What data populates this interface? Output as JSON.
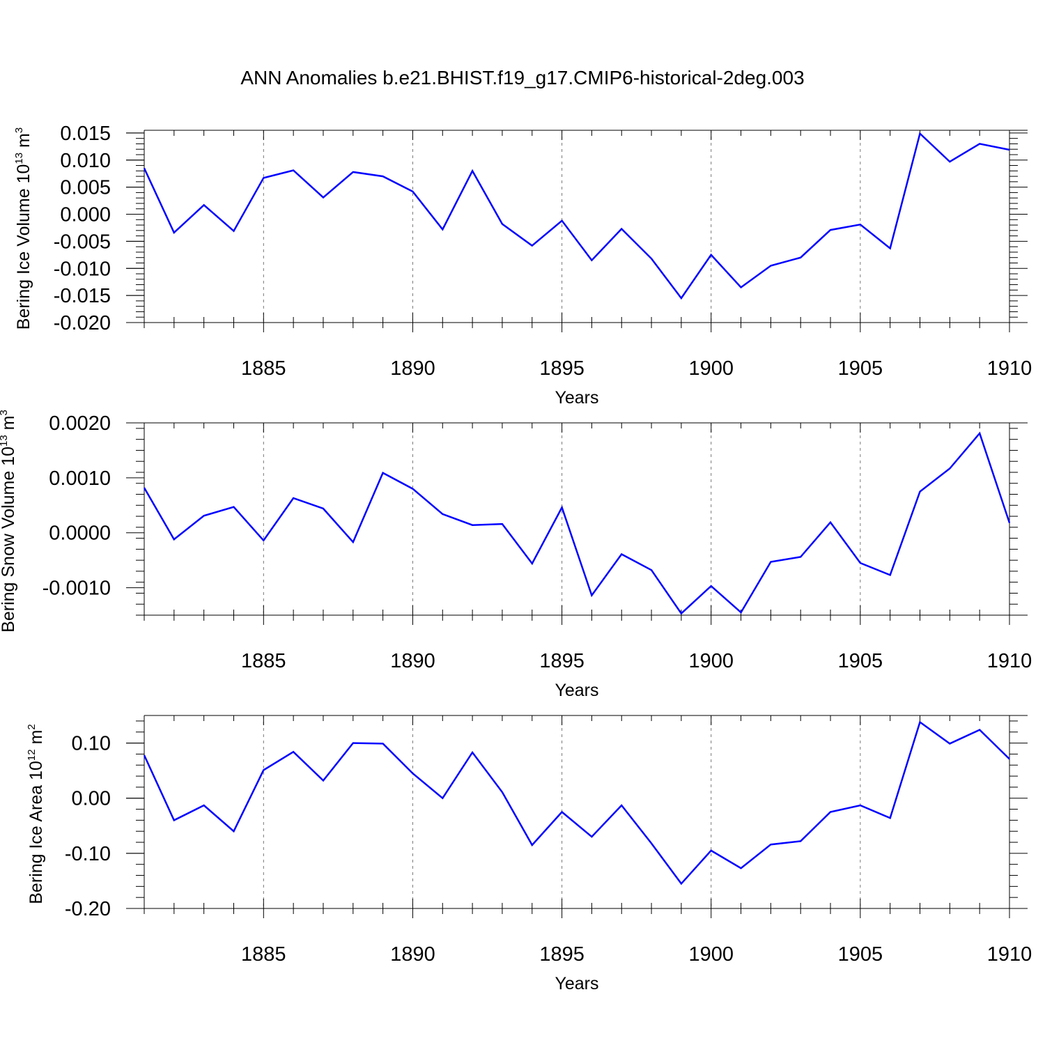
{
  "title": "ANN Anomalies b.e21.BHIST.f19_g17.CMIP6-historical-2deg.003",
  "line_color": "#0000ff",
  "chart_data": [
    {
      "type": "line",
      "ylabel_text": "Bering Ice Volume 10",
      "ylabel_exp": "13",
      "ylabel_unit": "m",
      "ylabel_unit_exp": "3",
      "xlabel": "Years",
      "xlim": [
        1881,
        1910
      ],
      "ylim": [
        -0.02,
        0.0155
      ],
      "yticks": [
        -0.02,
        -0.015,
        -0.01,
        -0.005,
        0.0,
        0.005,
        0.01,
        0.015
      ],
      "ytick_labels": [
        "-0.020",
        "-0.015",
        "-0.010",
        "-0.005",
        "0.000",
        "0.005",
        "0.010",
        "0.015"
      ],
      "xticks": [
        1885,
        1890,
        1895,
        1900,
        1905,
        1910
      ],
      "xtick_labels": [
        "1885",
        "1890",
        "1895",
        "1900",
        "1905",
        "1910"
      ],
      "x": [
        1881,
        1882,
        1883,
        1884,
        1885,
        1886,
        1887,
        1888,
        1889,
        1890,
        1891,
        1892,
        1893,
        1894,
        1895,
        1896,
        1897,
        1898,
        1899,
        1900,
        1901,
        1902,
        1903,
        1904,
        1905,
        1906,
        1907,
        1908,
        1909,
        1910
      ],
      "values": [
        0.0085,
        -0.0034,
        0.0017,
        -0.0031,
        0.0067,
        0.0081,
        0.0031,
        0.0078,
        0.007,
        0.0042,
        -0.0028,
        0.008,
        -0.0018,
        -0.0058,
        -0.0012,
        -0.0085,
        -0.0027,
        -0.0082,
        -0.0155,
        -0.0075,
        -0.0135,
        -0.0095,
        -0.008,
        -0.0029,
        -0.0019,
        -0.0063,
        0.0149,
        0.0097,
        0.013,
        0.0119
      ]
    },
    {
      "type": "line",
      "ylabel_text": "Bering Snow Volume 10",
      "ylabel_exp": "13",
      "ylabel_unit": "m",
      "ylabel_unit_exp": "3",
      "xlabel": "Years",
      "xlim": [
        1881,
        1910
      ],
      "ylim": [
        -0.0015,
        0.002
      ],
      "yticks": [
        -0.001,
        0.0,
        0.001,
        0.002
      ],
      "ytick_labels": [
        "-0.0010",
        "0.0000",
        "0.0010",
        "0.0020"
      ],
      "xticks": [
        1885,
        1890,
        1895,
        1900,
        1905,
        1910
      ],
      "xtick_labels": [
        "1885",
        "1890",
        "1895",
        "1900",
        "1905",
        "1910"
      ],
      "x": [
        1881,
        1882,
        1883,
        1884,
        1885,
        1886,
        1887,
        1888,
        1889,
        1890,
        1891,
        1892,
        1893,
        1894,
        1895,
        1896,
        1897,
        1898,
        1899,
        1900,
        1901,
        1902,
        1903,
        1904,
        1905,
        1906,
        1907,
        1908,
        1909,
        1910
      ],
      "values": [
        0.00082,
        -0.00012,
        0.00031,
        0.00047,
        -0.00014,
        0.00063,
        0.00044,
        -0.00017,
        0.00109,
        0.0008,
        0.00034,
        0.00014,
        0.00016,
        -0.00056,
        0.00046,
        -0.00114,
        -0.00039,
        -0.00068,
        -0.00147,
        -0.00097,
        -0.00145,
        -0.00053,
        -0.00044,
        0.00019,
        -0.00055,
        -0.00077,
        0.00075,
        0.00117,
        0.00181,
        0.00018
      ]
    },
    {
      "type": "line",
      "ylabel_text": "Bering Ice Area 10",
      "ylabel_exp": "12",
      "ylabel_unit": "m",
      "ylabel_unit_exp": "2",
      "xlabel": "Years",
      "xlim": [
        1881,
        1910
      ],
      "ylim": [
        -0.2,
        0.15
      ],
      "yticks": [
        -0.2,
        -0.1,
        0.0,
        0.1
      ],
      "ytick_labels": [
        "-0.20",
        "-0.10",
        "0.00",
        "0.10"
      ],
      "xticks": [
        1885,
        1890,
        1895,
        1900,
        1905,
        1910
      ],
      "xtick_labels": [
        "1885",
        "1890",
        "1895",
        "1900",
        "1905",
        "1910"
      ],
      "x": [
        1881,
        1882,
        1883,
        1884,
        1885,
        1886,
        1887,
        1888,
        1889,
        1890,
        1891,
        1892,
        1893,
        1894,
        1895,
        1896,
        1897,
        1898,
        1899,
        1900,
        1901,
        1902,
        1903,
        1904,
        1905,
        1906,
        1907,
        1908,
        1909,
        1910
      ],
      "values": [
        0.078,
        -0.04,
        -0.013,
        -0.06,
        0.051,
        0.084,
        0.032,
        0.1,
        0.099,
        0.045,
        0.0,
        0.083,
        0.011,
        -0.085,
        -0.025,
        -0.07,
        -0.013,
        -0.082,
        -0.155,
        -0.095,
        -0.127,
        -0.084,
        -0.078,
        -0.025,
        -0.013,
        -0.036,
        0.138,
        0.099,
        0.124,
        0.071
      ]
    }
  ]
}
